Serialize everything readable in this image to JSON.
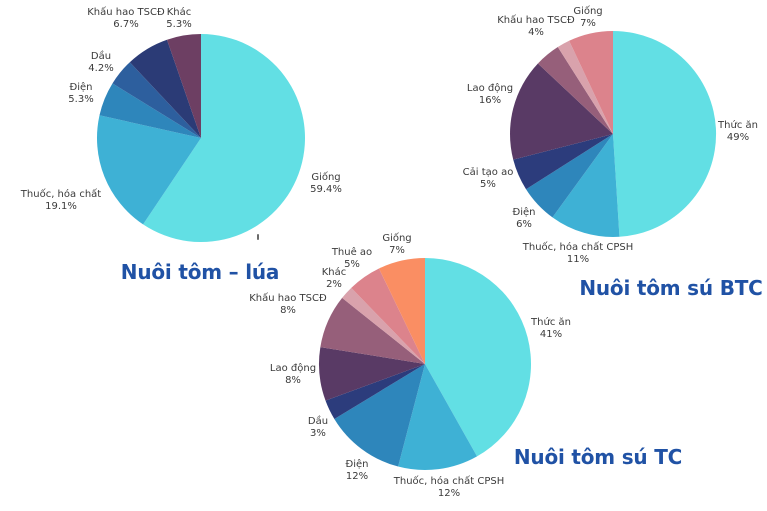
{
  "colors": {
    "background": "#FFFFFF",
    "title_text": "#2052A5",
    "label_text": "#3B3B3B"
  },
  "chart_data": [
    {
      "type": "pie",
      "title": "Nuôi tôm – lúa",
      "start": "12-oclock",
      "direction": "clockwise",
      "slices": [
        {
          "label": "Giống",
          "pct_label": "59.4%",
          "value": 59.4,
          "color": "#62DFE4"
        },
        {
          "label": "Thuốc, hóa chất",
          "pct_label": "19.1%",
          "value": 19.1,
          "color": "#3EB1D5"
        },
        {
          "label": "Điện",
          "pct_label": "5.3%",
          "value": 5.3,
          "color": "#2E86BB"
        },
        {
          "label": "Dầu",
          "pct_label": "4.2%",
          "value": 4.2,
          "color": "#2D5F9E"
        },
        {
          "label": "Khấu hao TSCĐ",
          "pct_label": "6.7%",
          "value": 6.7,
          "color": "#2B3B76"
        },
        {
          "label": "Khác",
          "pct_label": "5.3%",
          "value": 5.3,
          "color": "#6D3F63"
        }
      ]
    },
    {
      "type": "pie",
      "title": "Nuôi tôm sú BTC",
      "start": "12-oclock",
      "direction": "clockwise",
      "slices": [
        {
          "label": "Thức ăn",
          "pct_label": "49%",
          "value": 49,
          "color": "#62DFE4"
        },
        {
          "label": "Thuốc, hóa chất CPSH",
          "pct_label": "11%",
          "value": 11,
          "color": "#3EB1D5"
        },
        {
          "label": "Điện",
          "pct_label": "6%",
          "value": 6,
          "color": "#2E86BB"
        },
        {
          "label": "Cải tạo ao",
          "pct_label": "5%",
          "value": 5,
          "color": "#2C3C7C"
        },
        {
          "label": "Lao động",
          "pct_label": "16%",
          "value": 16,
          "color": "#593A65"
        },
        {
          "label": "Khấu hao TSCĐ",
          "pct_label": "4%",
          "value": 4,
          "color": "#965F7A"
        },
        {
          "label": "",
          "pct_label": "",
          "value": 2,
          "color": "#D9A2AC"
        },
        {
          "label": "Giống",
          "pct_label": "7%",
          "value": 7,
          "color": "#DC838C"
        }
      ]
    },
    {
      "type": "pie",
      "title": "Nuôi tôm sú TC",
      "start": "12-oclock",
      "direction": "clockwise",
      "slices": [
        {
          "label": "Thức ăn",
          "pct_label": "41%",
          "value": 41,
          "color": "#62DFE4"
        },
        {
          "label": "Thuốc, hóa chất CPSH",
          "pct_label": "12%",
          "value": 12,
          "color": "#3EB1D5"
        },
        {
          "label": "Điện",
          "pct_label": "12%",
          "value": 12,
          "color": "#2E86BB"
        },
        {
          "label": "Dầu",
          "pct_label": "3%",
          "value": 3,
          "color": "#2C3C7C"
        },
        {
          "label": "Lao động",
          "pct_label": "8%",
          "value": 8,
          "color": "#593A65"
        },
        {
          "label": "Khấu hao TSCĐ",
          "pct_label": "8%",
          "value": 8,
          "color": "#965F7A"
        },
        {
          "label": "Khác",
          "pct_label": "2%",
          "value": 2,
          "color": "#D9A2AC"
        },
        {
          "label": "Thuê ao",
          "pct_label": "5%",
          "value": 5,
          "color": "#DC838C"
        },
        {
          "label": "Giống",
          "pct_label": "7%",
          "value": 7,
          "color": "#FA8E63"
        }
      ]
    }
  ]
}
